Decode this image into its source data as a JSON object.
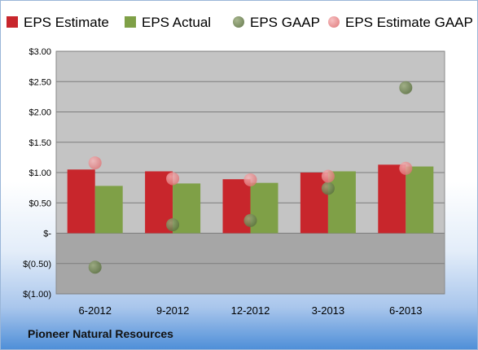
{
  "footer": {
    "company": "Pioneer Natural Resources"
  },
  "colors": {
    "eps_estimate": "#c8262c",
    "eps_actual": "#7fa047",
    "eps_gaap": "#5c7240",
    "eps_estimate_gaap": "#e8888a",
    "plot_bg": "#c4c4c4",
    "plot_bg_negative": "#a6a6a6"
  },
  "chart_data": {
    "type": "bar",
    "title": "",
    "xlabel": "",
    "ylabel": "",
    "categories": [
      "6-2012",
      "9-2012",
      "12-2012",
      "3-2013",
      "6-2013"
    ],
    "ylim": [
      -1.0,
      3.0
    ],
    "yticks": [
      3.0,
      2.5,
      2.0,
      1.5,
      1.0,
      0.5,
      0,
      -0.5,
      -1.0
    ],
    "ytick_labels": [
      "$3.00",
      "$2.50",
      "$2.00",
      "$1.50",
      "$1.00",
      "$0.50",
      "$-",
      "$(0.50)",
      "$(1.00)"
    ],
    "grid": true,
    "legend_position": "top",
    "series": [
      {
        "name": "EPS Estimate",
        "kind": "bar",
        "values": [
          1.05,
          1.02,
          0.89,
          1.0,
          1.13
        ]
      },
      {
        "name": "EPS Actual",
        "kind": "bar",
        "values": [
          0.78,
          0.82,
          0.83,
          1.02,
          1.1
        ]
      },
      {
        "name": "EPS GAAP",
        "kind": "marker",
        "values": [
          -0.56,
          0.14,
          0.21,
          0.74,
          2.4
        ]
      },
      {
        "name": "EPS Estimate GAAP",
        "kind": "marker",
        "values": [
          1.16,
          0.9,
          0.88,
          0.94,
          1.07
        ]
      }
    ]
  }
}
